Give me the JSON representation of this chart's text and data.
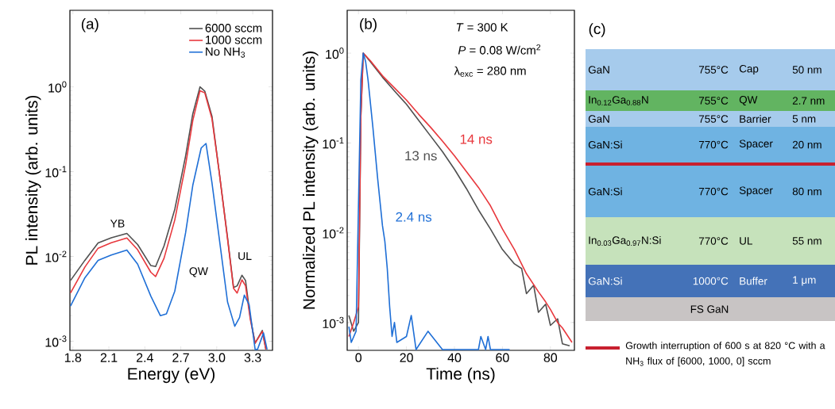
{
  "chart_data": [
    {
      "type": "line",
      "xlabel": "Energy (eV)",
      "ylabel": "PL intensity (arb. units)",
      "log": "y",
      "legend": "top right",
      "xlim": [
        1.775,
        3.465
      ],
      "ylim": [
        0.00078,
        8
      ],
      "xticks": [
        1.8,
        2.1,
        2.4,
        2.7,
        {
          "value": 3,
          "label": "3.0"
        },
        3.3
      ],
      "yticks": [
        {
          "value": 0.001,
          "label": "10$^{-3}$"
        },
        {
          "value": 0.01,
          "label": "10$^{-2}$"
        },
        {
          "value": 0.1,
          "label": "10$^{-1}$"
        },
        {
          "value": 1,
          "label": "10$^{0}$"
        }
      ],
      "series": [
        {
          "name": "6000 sccm",
          "color": "#505050",
          "x": [
            1.78,
            1.9,
            2.01,
            2.12,
            2.25,
            2.34,
            2.45,
            2.49,
            2.56,
            2.65,
            2.74,
            2.8,
            2.86,
            2.9,
            2.96,
            3.02,
            3.09,
            3.14,
            3.17,
            3.21,
            3.24,
            3.28,
            3.32,
            3.38,
            3.41
          ],
          "values": [
            0.0052,
            0.009,
            0.0144,
            0.0166,
            0.0187,
            0.0138,
            0.0078,
            0.0076,
            0.0133,
            0.036,
            0.153,
            0.48,
            1.0,
            0.89,
            0.45,
            0.1,
            0.0166,
            0.0043,
            0.0045,
            0.006,
            0.0052,
            0.0019,
            0.00095,
            0.00134,
            0.0008
          ]
        },
        {
          "name": "1000 sccm",
          "color": "#e8383d",
          "x": [
            1.78,
            1.9,
            2.01,
            2.12,
            2.25,
            2.34,
            2.45,
            2.49,
            2.56,
            2.65,
            2.74,
            2.8,
            2.86,
            2.9,
            2.96,
            3.02,
            3.09,
            3.14,
            3.17,
            3.21,
            3.24,
            3.28,
            3.32,
            3.38,
            3.41
          ],
          "values": [
            0.0037,
            0.0075,
            0.0125,
            0.0145,
            0.0165,
            0.012,
            0.0065,
            0.0058,
            0.0095,
            0.027,
            0.12,
            0.4,
            0.9,
            0.85,
            0.42,
            0.1,
            0.016,
            0.0042,
            0.0037,
            0.0053,
            0.0045,
            0.0018,
            0.00095,
            0.0013,
            0.0008
          ]
        },
        {
          "name": "No NH$_{3}$",
          "color": "#1f6fd6",
          "x": [
            1.78,
            1.9,
            2.01,
            2.12,
            2.25,
            2.34,
            2.45,
            2.53,
            2.58,
            2.65,
            2.74,
            2.8,
            2.87,
            2.91,
            2.96,
            3.02,
            3.09,
            3.15,
            3.19,
            3.23,
            3.27,
            3.32,
            3.34,
            3.39,
            3.42
          ],
          "values": [
            0.0026,
            0.0056,
            0.009,
            0.0104,
            0.0119,
            0.0081,
            0.0034,
            0.002,
            0.0021,
            0.0039,
            0.019,
            0.069,
            0.19,
            0.215,
            0.074,
            0.0166,
            0.0029,
            0.0015,
            0.0019,
            0.0035,
            0.0027,
            0.0008,
            0.0008,
            0.00125,
            0.0008
          ]
        }
      ],
      "annotations": [
        "(a)",
        "YB",
        "QW",
        "UL"
      ]
    },
    {
      "type": "line",
      "xlabel": "Time (ns)",
      "ylabel": "Normalized PL intensity (arb. units)",
      "log": "y",
      "xlim": [
        -4.7,
        90
      ],
      "ylim": [
        0.00049,
        3
      ],
      "xticks": [
        0,
        20,
        40,
        60,
        80
      ],
      "yticks": [
        {
          "value": 0.001,
          "label": "10$^{-3}$"
        },
        {
          "value": 0.01,
          "label": "10$^{-2}$"
        },
        {
          "value": 0.1,
          "label": "10$^{-1}$"
        },
        {
          "value": 1,
          "label": "10$^{0}$"
        }
      ],
      "series": [
        {
          "name": "13 ns",
          "color": "#505050",
          "x": [
            -4,
            -2,
            0,
            1,
            2,
            5,
            10,
            15,
            20,
            25,
            30,
            35,
            40,
            45,
            50,
            55,
            60,
            65,
            68,
            70,
            73,
            75,
            78,
            80,
            83,
            85,
            88
          ],
          "values": [
            0.0012,
            0.0008,
            0.001,
            0.2,
            1.0,
            0.8,
            0.54,
            0.38,
            0.27,
            0.18,
            0.12,
            0.08,
            0.051,
            0.031,
            0.018,
            0.011,
            0.0065,
            0.0045,
            0.004,
            0.0021,
            0.0026,
            0.0013,
            0.0016,
            0.00093,
            0.0011,
            0.00058,
            0.00055
          ]
        },
        {
          "name": "14 ns",
          "color": "#e8383d",
          "x": [
            -4,
            -2,
            0,
            1,
            2,
            5,
            10,
            15,
            20,
            25,
            30,
            35,
            40,
            45,
            50,
            55,
            60,
            65,
            70,
            75,
            78,
            80,
            83,
            85,
            89
          ],
          "values": [
            0.0007,
            0.001,
            0.0015,
            0.2,
            1.0,
            0.82,
            0.56,
            0.41,
            0.3,
            0.21,
            0.15,
            0.105,
            0.072,
            0.048,
            0.032,
            0.02,
            0.011,
            0.0065,
            0.0035,
            0.0022,
            0.0017,
            0.0014,
            0.001,
            0.00087,
            0.0006
          ]
        },
        {
          "name": "2.4 ns",
          "color": "#1f6fd6",
          "x": [
            -4,
            -3,
            -1,
            0,
            1,
            2,
            3,
            4,
            6,
            8,
            10,
            11,
            12,
            13,
            14,
            15,
            16,
            20,
            22,
            24,
            29,
            35,
            50,
            51,
            53,
            54,
            55,
            63
          ],
          "values": [
            0.0009,
            0.0006,
            0.0008,
            0.02,
            0.5,
            1.0,
            0.8,
            0.5,
            0.15,
            0.04,
            0.012,
            0.008,
            0.004,
            0.0015,
            0.0007,
            0.001,
            0.0006,
            0.0007,
            0.0012,
            0.0005,
            0.0008,
            0.0005,
            0.0005,
            0.0007,
            0.0005,
            0.0007,
            0.0005,
            0.0005
          ]
        }
      ],
      "annotations": [
        "(b)",
        "*T* = 300 K",
        "*P* =  0.08 W/cm$^{2}$",
        "λ$_{exc}$ = 280 nm"
      ]
    },
    {
      "type": "other",
      "annotations": [
        "(c)",
        "GaN",
        "755°C",
        "Cap",
        "50 nm",
        "In$_{0.12}$Ga$_{0.88}$N",
        "755°C",
        "QW",
        "2.7 nm",
        "GaN",
        "755°C",
        "Barrier",
        "5 nm",
        "GaN:Si",
        "770°C",
        "Spacer",
        "20 nm",
        "GaN:Si",
        "770°C",
        "Spacer",
        "80 nm",
        "In$_{0.03}$Ga$_{0.97}$N:Si",
        "770°C",
        "UL",
        "55 nm",
        "GaN:Si",
        "1000°C",
        "Buffer",
        "1 μm",
        "FS GaN",
        "Growth interruption of 600 s at 820 °C with a NH$_{3}$ flux of [6000, 1000, 0] sccm"
      ]
    }
  ]
}
